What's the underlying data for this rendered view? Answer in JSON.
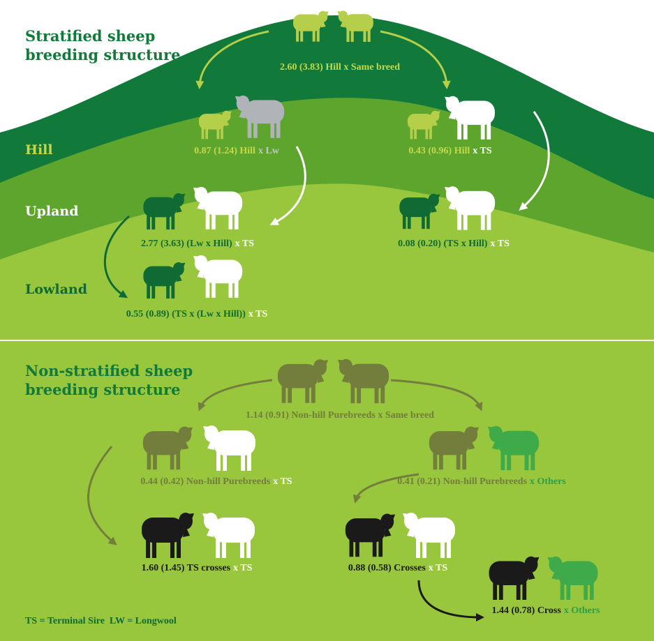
{
  "stratified": {
    "title": "Stratified sheep breeding structure",
    "zones": [
      "Hill",
      "Upland",
      "Lowland"
    ],
    "nodes": [
      {
        "parts": [
          "2.60 (3.83) Hill x Same breed"
        ]
      },
      {
        "parts": [
          "0.87 (1.24) Hill",
          "x Lw"
        ]
      },
      {
        "parts": [
          "0.43 (0.96) Hill",
          "x TS"
        ]
      },
      {
        "parts": [
          "2.77 (3.63) (Lw x Hill)",
          "x TS"
        ]
      },
      {
        "parts": [
          "0.08 (0.20) (TS x Hill)",
          "x TS"
        ]
      },
      {
        "parts": [
          "0.55 (0.89) (TS x (Lw x Hill))",
          "x TS"
        ]
      }
    ]
  },
  "non_stratified": {
    "title": "Non-stratified sheep breeding structure",
    "nodes": [
      {
        "parts": [
          "1.14 (0.91) Non-hill Purebreeds x Same breed"
        ]
      },
      {
        "parts": [
          "0.44 (0.42) Non-hill Purebreeds",
          "x TS"
        ]
      },
      {
        "parts": [
          "0.41 (0.21) Non-hill Purebreeds",
          "x Others"
        ]
      },
      {
        "parts": [
          "1.60 (1.45) TS crosses",
          "x TS"
        ]
      },
      {
        "parts": [
          "0.88 (0.58) Crosses",
          "x TS"
        ]
      },
      {
        "parts": [
          "1.44 (0.78) Cross",
          "x Others"
        ]
      }
    ]
  },
  "legend": "TS = Terminal Sire  LW = Longwool"
}
